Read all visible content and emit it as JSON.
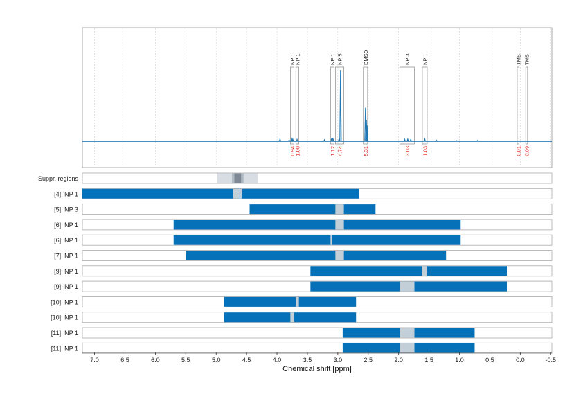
{
  "colors": {
    "spectrum": "#1f77b4",
    "bar": "#0571b9",
    "gap": "#c3cfd8",
    "supp_light": "#d7dde3",
    "supp_mid": "#aeb8c2",
    "supp_dark": "#7d8894",
    "integral": "#e41a1c",
    "frame": "#aaaaaa"
  },
  "chart_data": {
    "type": "nmr-spectrum-with-range-bars",
    "xlabel": "Chemical shift [ppm]",
    "x_reversed": true,
    "xlim": [
      7.2,
      -0.52
    ],
    "xticks": [
      "7.0",
      "6.5",
      "6.0",
      "5.5",
      "5.0",
      "4.5",
      "4.0",
      "3.5",
      "3.0",
      "2.5",
      "2.0",
      "1.5",
      "1.0",
      "0.5",
      "0.0",
      "-0.5"
    ],
    "grid": "dotted vertical",
    "signals": [
      {
        "label": "NP 1",
        "x1": 3.78,
        "x2": 3.72,
        "integral": "0.94"
      },
      {
        "label": "NP 1",
        "x1": 3.69,
        "x2": 3.64,
        "integral": "1.00"
      },
      {
        "label": "NP 1",
        "x1": 3.12,
        "x2": 3.06,
        "integral": "1.12"
      },
      {
        "label": "NP 5",
        "x1": 3.04,
        "x2": 2.9,
        "integral": "4.74"
      },
      {
        "label": "DMSO",
        "x1": 2.58,
        "x2": 2.51,
        "integral": "5.31"
      },
      {
        "label": "NP 3",
        "x1": 1.98,
        "x2": 1.74,
        "integral": "3.03"
      },
      {
        "label": "NP 1",
        "x1": 1.61,
        "x2": 1.53,
        "integral": "1.03"
      },
      {
        "label": "TMS",
        "x1": 0.05,
        "x2": 0.02,
        "integral": "0.01"
      },
      {
        "label": "TMS",
        "x1": -0.09,
        "x2": -0.12,
        "integral": "0.09"
      }
    ],
    "suppressed_regions": {
      "label": "Suppr. regions",
      "light": [
        4.98,
        4.32
      ],
      "mid": [
        4.74,
        4.55
      ],
      "dark": [
        4.7,
        4.59
      ]
    },
    "ranges": [
      {
        "label": "[4]; NP 1",
        "start": 7.2,
        "end": 2.65,
        "gap": [
          4.72,
          4.58
        ]
      },
      {
        "label": "[5]; NP 3",
        "start": 4.45,
        "end": 2.38,
        "gap": [
          3.04,
          2.9
        ]
      },
      {
        "label": "[6]; NP 1",
        "start": 5.7,
        "end": 0.98,
        "gap": [
          3.04,
          2.9
        ]
      },
      {
        "label": "[6]; NP 1",
        "start": 5.7,
        "end": 0.98,
        "gap": [
          3.12,
          3.09
        ]
      },
      {
        "label": "[7]; NP 1",
        "start": 5.5,
        "end": 1.22,
        "gap": [
          3.04,
          2.9
        ]
      },
      {
        "label": "[9]; NP 1",
        "start": 3.45,
        "end": 0.22,
        "gap": [
          1.61,
          1.53
        ]
      },
      {
        "label": "[9]; NP 1",
        "start": 3.45,
        "end": 0.22,
        "gap": [
          1.98,
          1.74
        ]
      },
      {
        "label": "[10]; NP 1",
        "start": 4.87,
        "end": 2.7,
        "gap": [
          3.69,
          3.64
        ]
      },
      {
        "label": "[10]; NP 1",
        "start": 4.87,
        "end": 2.7,
        "gap": [
          3.78,
          3.72
        ]
      },
      {
        "label": "[11]; NP 1",
        "start": 2.92,
        "end": 0.75,
        "gap": [
          1.98,
          1.74
        ]
      },
      {
        "label": "[11]; NP 1",
        "start": 2.92,
        "end": 0.75,
        "gap": [
          1.98,
          1.74
        ]
      }
    ],
    "spectrum": {
      "baseline_noise": [
        {
          "x": 3.95,
          "h": 0.03
        },
        {
          "x": 3.8,
          "h": 0.02
        },
        {
          "x": 3.76,
          "h": 0.035
        },
        {
          "x": 3.74,
          "h": 0.03
        },
        {
          "x": 3.67,
          "h": 0.025
        },
        {
          "x": 3.22,
          "h": 0.02
        },
        {
          "x": 3.1,
          "h": 0.045
        },
        {
          "x": 3.08,
          "h": 0.04
        },
        {
          "x": 2.98,
          "h": 0.03
        },
        {
          "x": 1.9,
          "h": 0.025
        },
        {
          "x": 1.85,
          "h": 0.03
        },
        {
          "x": 1.8,
          "h": 0.025
        },
        {
          "x": 1.57,
          "h": 0.03
        },
        {
          "x": 1.38,
          "h": 0.015
        },
        {
          "x": 0.7,
          "h": 0.012
        },
        {
          "x": 1.05,
          "h": 0.01
        }
      ],
      "peaks": [
        {
          "x": 2.955,
          "h": 1.0
        },
        {
          "x": 2.545,
          "h": 0.47
        },
        {
          "x": 2.53,
          "h": 0.3
        },
        {
          "x": 2.52,
          "h": 0.22
        }
      ]
    }
  }
}
